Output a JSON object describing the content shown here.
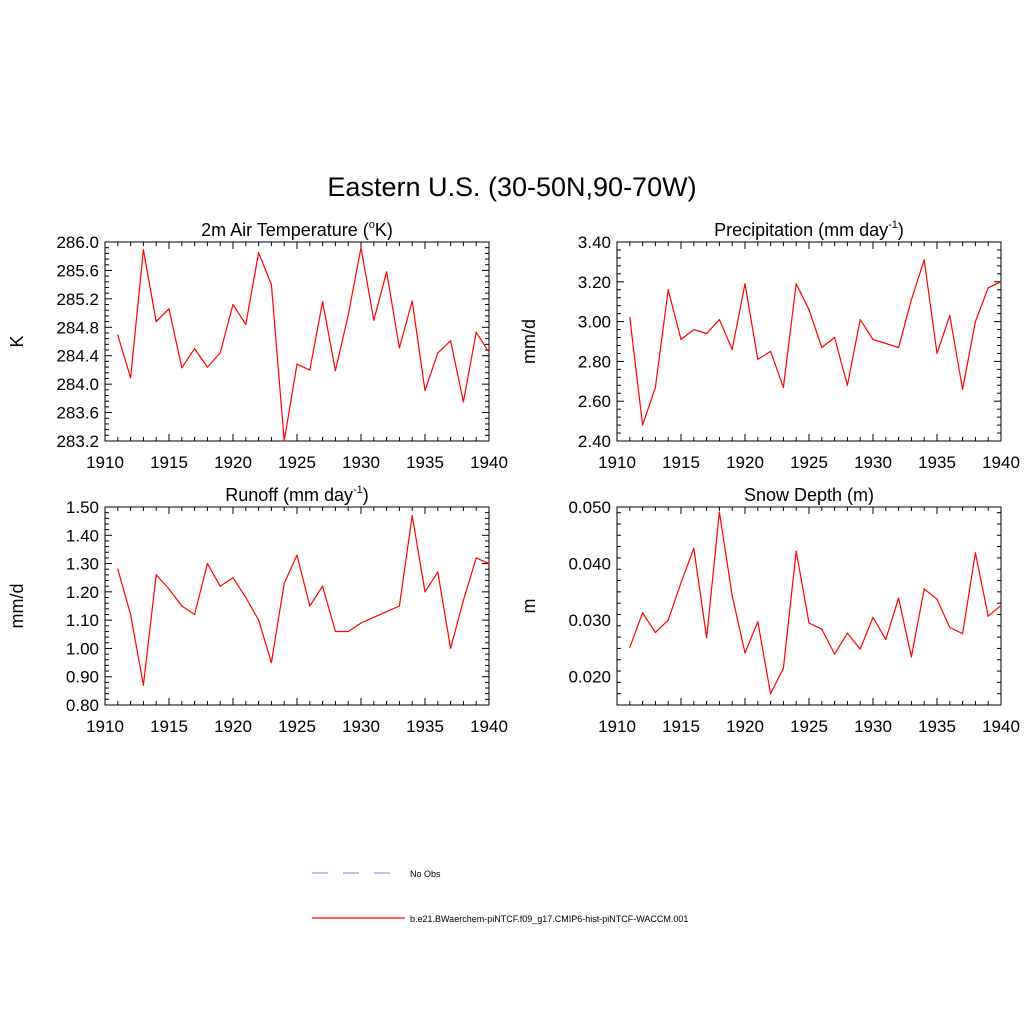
{
  "figure": {
    "title": "Eastern U.S. (30-50N,90-70W)",
    "legend": [
      {
        "label": "No Obs",
        "color": "#9999dd",
        "dash": "dashed"
      },
      {
        "label": "b.e21.BWaerchem-piNTCF.f09_g17.CMIP6-hist-piNTCF-WACCM.001",
        "color": "#ff0000",
        "dash": "solid"
      }
    ]
  },
  "chart_data": [
    {
      "type": "line",
      "title_main": "2m Air Temperature (",
      "title_sup": "o",
      "title_end": "K)",
      "ylabel": "K",
      "xlim": [
        1910,
        1940
      ],
      "ylim": [
        283.2,
        286.0
      ],
      "xticks": [
        1910,
        1915,
        1920,
        1925,
        1930,
        1935,
        1940
      ],
      "xtick_labels": [
        "1910",
        "1915",
        "1920",
        "1925",
        "1930",
        "1935",
        "1940"
      ],
      "yticks": [
        283.2,
        283.6,
        284.0,
        284.4,
        284.8,
        285.2,
        285.6,
        286.0
      ],
      "ytick_labels": [
        "283.2",
        "283.6",
        "284.0",
        "284.4",
        "284.8",
        "285.2",
        "285.6",
        "286.0"
      ],
      "yminor": 4,
      "x": [
        1911,
        1912,
        1913,
        1914,
        1915,
        1916,
        1917,
        1918,
        1919,
        1920,
        1921,
        1922,
        1923,
        1924,
        1925,
        1926,
        1927,
        1928,
        1929,
        1930,
        1931,
        1932,
        1933,
        1934,
        1935,
        1936,
        1937,
        1938,
        1939,
        1940
      ],
      "series": [
        {
          "color": "#ff0000",
          "values": [
            284.69,
            284.09,
            285.89,
            284.88,
            285.06,
            284.23,
            284.5,
            284.24,
            284.44,
            285.12,
            284.84,
            285.85,
            285.4,
            283.2,
            284.28,
            284.2,
            285.16,
            284.19,
            284.97,
            285.92,
            284.9,
            285.58,
            284.51,
            285.17,
            283.91,
            284.44,
            284.61,
            283.75,
            284.73,
            284.45
          ]
        }
      ]
    },
    {
      "type": "line",
      "title_main": "Precipitation (mm day",
      "title_sup": "-1",
      "title_end": ")",
      "ylabel": "mm/d",
      "xlim": [
        1910,
        1940
      ],
      "ylim": [
        2.4,
        3.4
      ],
      "xticks": [
        1910,
        1915,
        1920,
        1925,
        1930,
        1935,
        1940
      ],
      "xtick_labels": [
        "1910",
        "1915",
        "1920",
        "1925",
        "1930",
        "1935",
        "1940"
      ],
      "yticks": [
        2.4,
        2.6,
        2.8,
        3.0,
        3.2,
        3.4
      ],
      "ytick_labels": [
        "2.40",
        "2.60",
        "2.80",
        "3.00",
        "3.20",
        "3.40"
      ],
      "yminor": 4,
      "x": [
        1911,
        1912,
        1913,
        1914,
        1915,
        1916,
        1917,
        1918,
        1919,
        1920,
        1921,
        1922,
        1923,
        1924,
        1925,
        1926,
        1927,
        1928,
        1929,
        1930,
        1931,
        1932,
        1933,
        1934,
        1935,
        1936,
        1937,
        1938,
        1939,
        1940
      ],
      "series": [
        {
          "color": "#ff0000",
          "values": [
            3.02,
            2.48,
            2.67,
            3.16,
            2.91,
            2.96,
            2.94,
            3.01,
            2.86,
            3.19,
            2.81,
            2.85,
            2.67,
            3.19,
            3.06,
            2.87,
            2.92,
            2.68,
            3.01,
            2.91,
            2.89,
            2.87,
            3.11,
            3.31,
            2.84,
            3.03,
            2.66,
            3.0,
            3.17,
            3.2
          ]
        }
      ]
    },
    {
      "type": "line",
      "title_main": "Runoff (mm day",
      "title_sup": "-1",
      "title_end": ")",
      "ylabel": "mm/d",
      "xlim": [
        1910,
        1940
      ],
      "ylim": [
        0.8,
        1.5
      ],
      "xticks": [
        1910,
        1915,
        1920,
        1925,
        1930,
        1935,
        1940
      ],
      "xtick_labels": [
        "1910",
        "1915",
        "1920",
        "1925",
        "1930",
        "1935",
        "1940"
      ],
      "yticks": [
        0.8,
        0.9,
        1.0,
        1.1,
        1.2,
        1.3,
        1.4,
        1.5
      ],
      "ytick_labels": [
        "0.80",
        "0.90",
        "1.00",
        "1.10",
        "1.20",
        "1.30",
        "1.40",
        "1.50"
      ],
      "yminor": 4,
      "x": [
        1911,
        1912,
        1913,
        1914,
        1915,
        1916,
        1917,
        1918,
        1919,
        1920,
        1921,
        1922,
        1923,
        1924,
        1925,
        1926,
        1927,
        1928,
        1929,
        1930,
        1931,
        1932,
        1933,
        1934,
        1935,
        1936,
        1937,
        1938,
        1939,
        1940
      ],
      "series": [
        {
          "color": "#ff0000",
          "values": [
            1.28,
            1.12,
            0.87,
            1.26,
            1.21,
            1.15,
            1.12,
            1.3,
            1.22,
            1.25,
            1.18,
            1.1,
            0.95,
            1.23,
            1.33,
            1.15,
            1.22,
            1.06,
            1.06,
            1.09,
            1.11,
            1.13,
            1.15,
            1.47,
            1.2,
            1.27,
            1.0,
            1.17,
            1.32,
            1.3
          ]
        }
      ]
    },
    {
      "type": "line",
      "title_main": "Snow Depth (m)",
      "title_sup": "",
      "title_end": "",
      "ylabel": "m",
      "xlim": [
        1910,
        1940
      ],
      "ylim": [
        0.015,
        0.05
      ],
      "xticks": [
        1910,
        1915,
        1920,
        1925,
        1930,
        1935,
        1940
      ],
      "xtick_labels": [
        "1910",
        "1915",
        "1920",
        "1925",
        "1930",
        "1935",
        "1940"
      ],
      "yticks": [
        0.02,
        0.03,
        0.04,
        0.05
      ],
      "ytick_labels": [
        "0.020",
        "0.030",
        "0.040",
        "0.050"
      ],
      "yminor": 4,
      "x": [
        1911,
        1912,
        1913,
        1914,
        1915,
        1916,
        1917,
        1918,
        1919,
        1920,
        1921,
        1922,
        1923,
        1924,
        1925,
        1926,
        1927,
        1928,
        1929,
        1930,
        1931,
        1932,
        1933,
        1934,
        1935,
        1936,
        1937,
        1938,
        1939,
        1940
      ],
      "series": [
        {
          "color": "#ff0000",
          "values": [
            0.0252,
            0.0313,
            0.0278,
            0.03,
            0.0366,
            0.0427,
            0.0269,
            0.0491,
            0.0343,
            0.0242,
            0.0297,
            0.017,
            0.0215,
            0.0422,
            0.0295,
            0.0284,
            0.024,
            0.0277,
            0.0249,
            0.0305,
            0.0266,
            0.0339,
            0.0235,
            0.0355,
            0.0337,
            0.0287,
            0.0276,
            0.0419,
            0.0307,
            0.0326
          ]
        }
      ]
    }
  ]
}
